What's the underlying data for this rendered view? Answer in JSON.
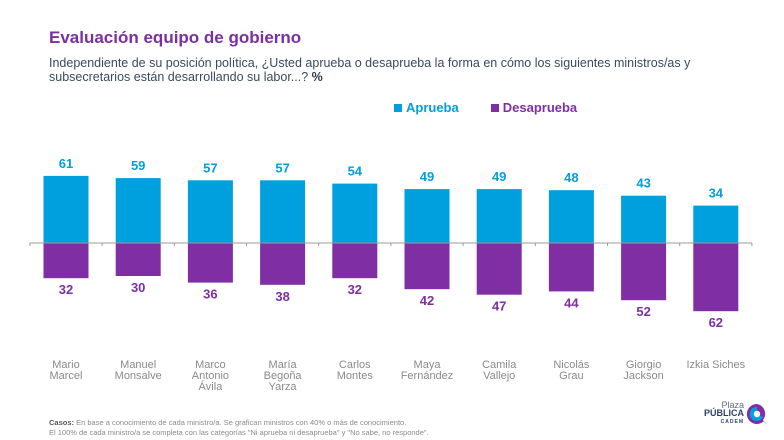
{
  "header": {
    "title": "Evaluación equipo de gobierno",
    "subtitle": "Independiente de su posición política, ¿Usted aprueba o desaprueba la forma en cómo los siguientes ministros/as y subsecretarios están desarrollando su labor...?",
    "subtitle_unit": "%"
  },
  "colors": {
    "aprueba": "#009fde",
    "desaprueba": "#7f2fa3",
    "title": "#7b2fa0",
    "axis": "#9b9b9b",
    "category_label": "#8a8a8a"
  },
  "chart_data": {
    "type": "bar",
    "title": "Evaluación equipo de gobierno",
    "xlabel": "",
    "ylabel": "",
    "unit": "%",
    "layout": "diverging",
    "legend_position": "top-center",
    "grid": false,
    "categories": [
      [
        "Mario",
        "Marcel"
      ],
      [
        "Manuel",
        "Monsalve"
      ],
      [
        "Marco",
        "Antonio",
        "Ávila"
      ],
      [
        "María",
        "Begoña",
        "Yarza"
      ],
      [
        "Carlos",
        "Montes"
      ],
      [
        "Maya",
        "Fernández"
      ],
      [
        "Camila",
        "Vallejo"
      ],
      [
        "Nicolás",
        "Grau"
      ],
      [
        "Giorgio",
        "Jackson"
      ],
      [
        "Izkia Siches"
      ]
    ],
    "series": [
      {
        "name": "Aprueba",
        "direction": "up",
        "values": [
          61,
          59,
          57,
          57,
          54,
          49,
          49,
          48,
          43,
          34
        ]
      },
      {
        "name": "Desaprueba",
        "direction": "down",
        "values": [
          32,
          30,
          36,
          38,
          32,
          42,
          47,
          44,
          52,
          62
        ]
      }
    ],
    "ylim": [
      -62,
      61
    ]
  },
  "footnote": {
    "label": "Casos:",
    "line1": "En base a conocimiento de cada ministro/a. Se grafican ministros con 40% o más de conocimiento.",
    "line2": "El 100% de cada ministro/a se completa con las categorías \"Ni aprueba ni desaprueba\" y \"No sabe, no responde\"."
  },
  "logo": {
    "line1": "Plaza",
    "line2": "PÚBLICA",
    "line3": "CADEM"
  }
}
